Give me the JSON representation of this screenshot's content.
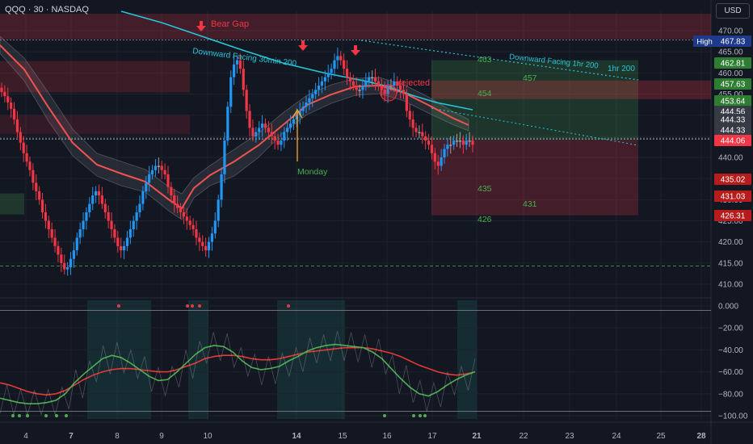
{
  "header": {
    "symbol_line": "QQQ · 30 · NASDAQ",
    "currency": "USD"
  },
  "colors": {
    "bg": "#131722",
    "up": "#2196f3",
    "down": "#f23645",
    "flat": "#9e9e9e",
    "ema_teal": "#26c6da",
    "ema_red": "#f05350",
    "green": "#4caf50",
    "label_red": "#f23645"
  },
  "price_axis": {
    "ticks": [
      "470.00",
      "465.00",
      "460.00",
      "455.00",
      "450.00",
      "445.00",
      "440.00",
      "435.00",
      "430.00",
      "425.00",
      "420.00",
      "415.00",
      "410.00"
    ],
    "badges": [
      {
        "text": "High",
        "value": "467.83",
        "color": "#1e3a8a"
      },
      {
        "text": "",
        "value": "462.81",
        "color": "#2e7d32"
      },
      {
        "text": "",
        "value": "457.63",
        "color": "#2e7d32"
      },
      {
        "text": "",
        "value": "453.64",
        "color": "#2e7d32"
      },
      {
        "text": "",
        "value": "444.56",
        "color": "#363a45"
      },
      {
        "text": "",
        "value": "444.33",
        "color": "#363a45"
      },
      {
        "text": "",
        "value": "444.33",
        "color": "#363a45"
      },
      {
        "text": "",
        "value": "444.06",
        "color": "#f23645"
      },
      {
        "text": "",
        "value": "435.02",
        "color": "#b71c1c"
      },
      {
        "text": "",
        "value": "431.03",
        "color": "#b71c1c"
      },
      {
        "text": "",
        "value": "426.31",
        "color": "#b71c1c"
      }
    ]
  },
  "osc_axis": {
    "ticks": [
      "0.000",
      "−20.00",
      "−40.00",
      "−60.00",
      "−80.00",
      "−100.00"
    ]
  },
  "time_axis": {
    "ticks": [
      "4",
      "7",
      "8",
      "9",
      "10",
      "14",
      "15",
      "16",
      "17",
      "21",
      "22",
      "23",
      "24",
      "25",
      "28"
    ]
  },
  "annotations": {
    "bear_gap": "Bear Gap",
    "ema30": "Downward Facing 30min 200",
    "ema1h": "Downward Facing 1hr 200",
    "hr200": "1hr 200",
    "rejected": "rejected",
    "monday": "Monday",
    "levels_green": [
      "463",
      "457",
      "454"
    ],
    "levels_red": [
      "435",
      "431",
      "426"
    ]
  },
  "chart_data": {
    "type": "candlestick",
    "title": "QQQ · 30 · NASDAQ",
    "ylim": [
      408,
      474
    ],
    "osc_ylim": [
      -102,
      2
    ],
    "x_ticks": [
      "4",
      "7",
      "8",
      "9",
      "10",
      "14",
      "15",
      "16",
      "17",
      "21",
      "22",
      "23",
      "24",
      "25",
      "28"
    ],
    "closes": [
      455.5,
      454.5,
      453,
      451.5,
      449,
      446,
      443.5,
      441,
      439,
      437,
      434,
      432,
      430,
      427,
      425,
      423,
      421,
      419,
      417,
      415,
      413.5,
      414,
      416,
      418,
      421,
      423,
      425,
      427,
      429,
      431,
      432,
      431,
      429,
      427,
      425,
      423,
      421,
      419,
      418,
      419,
      421,
      423,
      425,
      427,
      429,
      432,
      434,
      436,
      437,
      438,
      438,
      437,
      436,
      433,
      431,
      429,
      428,
      427,
      426,
      425,
      424,
      423,
      421,
      420,
      419,
      418,
      420,
      422,
      425,
      430,
      436,
      444,
      452,
      459,
      462,
      463,
      461,
      456,
      451,
      447,
      445,
      446,
      447,
      448,
      447,
      446,
      445,
      444,
      443,
      444,
      446,
      447,
      448,
      449,
      450,
      451,
      452,
      453,
      454,
      455,
      456,
      457,
      458,
      459,
      460,
      461,
      463,
      464,
      463,
      461,
      459,
      458,
      457,
      456,
      456,
      457,
      458,
      459,
      459,
      458,
      457,
      456,
      455,
      457,
      457,
      458,
      457,
      456,
      455,
      451,
      449,
      447,
      446,
      446,
      445,
      444,
      443,
      441,
      439,
      438,
      440,
      442,
      443,
      443,
      444,
      444,
      444,
      443,
      444,
      444,
      443
    ],
    "oscillator": {
      "series": [
        {
          "name": "",
          "color": "#4caf50",
          "values": [
            -84,
            -86,
            -88,
            -89,
            -89,
            -88,
            -86,
            -80,
            -70,
            -62,
            -55,
            -48,
            -45,
            -47,
            -52,
            -58,
            -64,
            -68,
            -67,
            -60,
            -52,
            -44,
            -38,
            -36,
            -37,
            -42,
            -50,
            -56,
            -58,
            -57,
            -55,
            -50,
            -46,
            -41,
            -38,
            -36,
            -35,
            -36,
            -37,
            -38,
            -42,
            -48,
            -57,
            -66,
            -74,
            -80,
            -82,
            -78,
            -72,
            -67,
            -63,
            -60
          ]
        },
        {
          "name": "",
          "color": "#e53935",
          "values": [
            -70,
            -72,
            -75,
            -78,
            -80,
            -81,
            -80,
            -77,
            -72,
            -67,
            -63,
            -60,
            -58,
            -57,
            -57,
            -58,
            -59,
            -60,
            -60,
            -58,
            -55,
            -52,
            -48,
            -46,
            -45,
            -45,
            -46,
            -48,
            -49,
            -49,
            -48,
            -46,
            -44,
            -42,
            -41,
            -40,
            -39,
            -38,
            -38,
            -38,
            -39,
            -41,
            -43,
            -46,
            -50,
            -54,
            -57,
            -60,
            -62,
            -63,
            -62,
            -60
          ]
        }
      ]
    }
  }
}
